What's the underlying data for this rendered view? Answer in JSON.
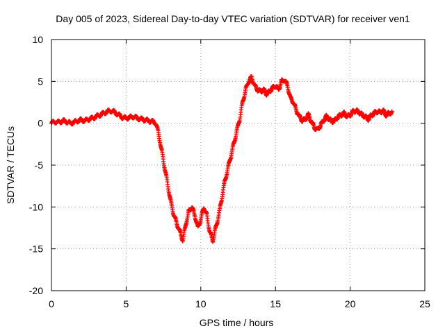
{
  "chart_data": {
    "type": "scatter",
    "title": "Day 005 of 2023, Sidereal Day-to-day VTEC variation (SDTVAR) for receiver ven1",
    "xlabel": "GPS time / hours",
    "ylabel": "SDTVAR / TECUs",
    "xlim": [
      0,
      25
    ],
    "ylim": [
      -20,
      10
    ],
    "xticks": [
      0,
      5,
      10,
      15,
      20,
      25
    ],
    "yticks": [
      -20,
      -15,
      -10,
      -5,
      0,
      5,
      10
    ],
    "grid": true,
    "marker": "+",
    "series": [
      {
        "name": "SDTVAR",
        "color": "#ff0000",
        "x": [
          0.0,
          0.25,
          0.5,
          0.75,
          1.0,
          1.25,
          1.5,
          1.75,
          2.0,
          2.25,
          2.5,
          2.75,
          3.0,
          3.25,
          3.5,
          3.75,
          4.0,
          4.25,
          4.5,
          4.75,
          5.0,
          5.25,
          5.5,
          5.75,
          6.0,
          6.25,
          6.5,
          6.75,
          7.0,
          7.2,
          7.4,
          7.6,
          7.8,
          8.0,
          8.2,
          8.4,
          8.6,
          8.8,
          9.0,
          9.2,
          9.4,
          9.6,
          9.8,
          10.0,
          10.2,
          10.4,
          10.6,
          10.8,
          11.0,
          11.2,
          11.4,
          11.6,
          11.8,
          12.0,
          12.2,
          12.4,
          12.6,
          12.8,
          13.0,
          13.2,
          13.4,
          13.6,
          13.8,
          14.0,
          14.2,
          14.4,
          14.6,
          14.8,
          15.0,
          15.2,
          15.4,
          15.6,
          15.8,
          16.0,
          16.2,
          16.4,
          16.6,
          16.8,
          17.0,
          17.2,
          17.4,
          17.6,
          17.8,
          18.0,
          18.2,
          18.4,
          18.6,
          18.8,
          19.0,
          19.2,
          19.4,
          19.6,
          19.8,
          20.0,
          20.2,
          20.4,
          20.6,
          20.8,
          21.0,
          21.2,
          21.4,
          21.6,
          21.8,
          22.0,
          22.2,
          22.4,
          22.6,
          22.8
        ],
        "y": [
          0.0,
          0.2,
          0.1,
          0.3,
          0.2,
          0.0,
          0.1,
          0.3,
          0.4,
          0.3,
          0.5,
          0.6,
          0.8,
          1.0,
          1.2,
          1.4,
          1.5,
          1.3,
          1.0,
          0.7,
          0.6,
          0.7,
          0.8,
          0.6,
          0.5,
          0.4,
          0.3,
          0.2,
          0.0,
          -1.5,
          -3.5,
          -5.5,
          -7.5,
          -9.5,
          -11.0,
          -12.0,
          -13.0,
          -14.0,
          -12.0,
          -10.5,
          -10.0,
          -11.0,
          -12.5,
          -11.5,
          -10.0,
          -11.0,
          -13.0,
          -14.0,
          -12.5,
          -11.0,
          -9.0,
          -7.0,
          -5.5,
          -4.0,
          -2.5,
          -1.0,
          0.5,
          2.5,
          4.0,
          5.0,
          5.5,
          4.5,
          4.0,
          3.8,
          4.0,
          3.5,
          3.8,
          4.2,
          4.5,
          4.0,
          5.0,
          5.2,
          4.5,
          3.0,
          2.5,
          1.5,
          0.8,
          0.3,
          0.5,
          1.0,
          0.2,
          -0.5,
          -0.8,
          -0.3,
          0.3,
          0.8,
          0.5,
          0.2,
          0.4,
          0.8,
          1.0,
          1.2,
          0.8,
          1.0,
          1.4,
          1.5,
          1.3,
          1.0,
          0.8,
          0.5,
          0.9,
          1.2,
          1.4,
          1.3,
          1.5,
          1.0,
          1.2,
          1.3
        ]
      }
    ]
  }
}
